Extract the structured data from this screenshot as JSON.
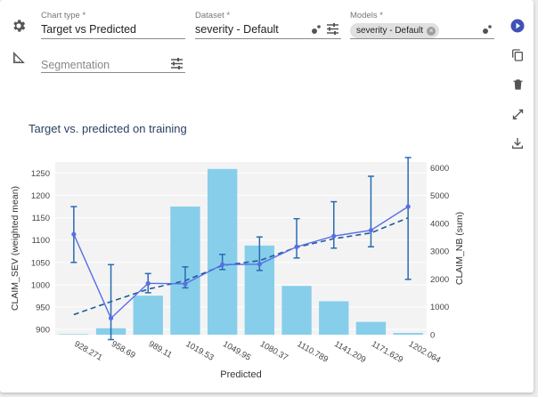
{
  "controls": {
    "chart_type": {
      "label": "Chart type *",
      "value": "Target vs Predicted"
    },
    "dataset": {
      "label": "Dataset *",
      "value": "severity - Default"
    },
    "models": {
      "label": "Models *",
      "chip": "severity - Default"
    },
    "segmentation": {
      "placeholder": "Segmentation"
    }
  },
  "icons": {
    "left": [
      "gear-icon",
      "ruler-icon"
    ],
    "right": [
      "run-icon",
      "copy-icon",
      "delete-icon",
      "expand-icon",
      "download-icon"
    ]
  },
  "colors": {
    "accent": "#3f51b5",
    "bars": "#87ceeb",
    "line": "#5a6ee6",
    "trend": "#1f5c99",
    "error_bars": "#2a6bb0"
  },
  "chart_title": "Target vs. predicted on training",
  "chart_data": {
    "type": "bar",
    "title": "Target vs. predicted on training",
    "xlabel": "Predicted",
    "ylabel": "CLAIM_SEV (weighted mean)",
    "y2label": "CLAIM_NB (sum)",
    "categories": [
      "928.271",
      "958.69",
      "989.11",
      "1019.53",
      "1049.95",
      "1080.37",
      "1110.789",
      "1141.209",
      "1171.629",
      "1202.064"
    ],
    "ylim": [
      888,
      1275
    ],
    "y2lim": [
      0,
      6200
    ],
    "yticks": [
      900,
      950,
      1000,
      1050,
      1100,
      1150,
      1200,
      1250
    ],
    "y2ticks": [
      0,
      1000,
      2000,
      3000,
      4000,
      5000,
      6000
    ],
    "grid": true,
    "series": [
      {
        "values": [
          20,
          230,
          1400,
          4600,
          5950,
          3200,
          1750,
          1200,
          460,
          60
        ]
      },
      {
        "values": [
          1113,
          925,
          1003,
          1002,
          1045,
          1046,
          1085,
          1109,
          1122,
          1175
        ],
        "error": [
          [
            1050,
            1175
          ],
          [
            877,
            1045
          ],
          [
            982,
            1025
          ],
          [
            993,
            1040
          ],
          [
            1034,
            1068
          ],
          [
            1032,
            1107
          ],
          [
            1060,
            1148
          ],
          [
            1082,
            1186
          ],
          [
            1085,
            1243
          ],
          [
            1012,
            1285
          ]
        ]
      },
      {
        "values": [
          933,
          962,
          990,
          1009,
          1043,
          1054,
          1084,
          1103,
          1116,
          1150
        ]
      }
    ]
  }
}
